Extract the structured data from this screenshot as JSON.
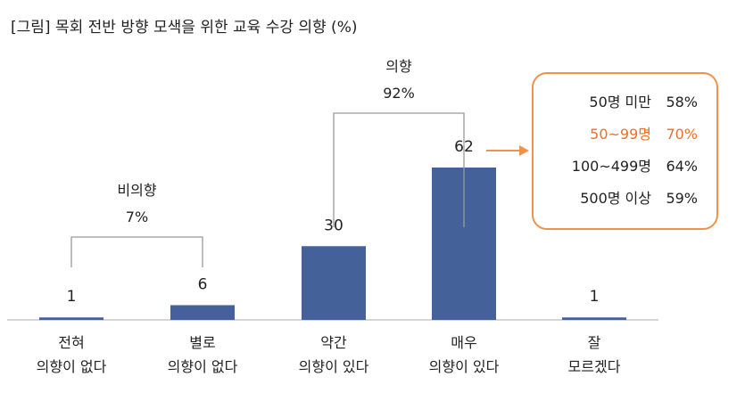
{
  "chart_data": {
    "type": "bar",
    "title": "[그림] 목회 전반 방향 모색을 위한 교육 수강 의향 (%)",
    "unit": "%",
    "categories": [
      [
        "전혀",
        "의향이 없다"
      ],
      [
        "별로",
        "의향이 없다"
      ],
      [
        "약간",
        "의향이 있다"
      ],
      [
        "매우",
        "의향이 있다"
      ],
      [
        "잘",
        "모르겠다"
      ]
    ],
    "values": [
      1,
      6,
      30,
      62,
      1
    ],
    "ylim": [
      0,
      62
    ],
    "bar_color": "#44619a",
    "groups": [
      {
        "label": "비의향",
        "value": "7%",
        "from": 0,
        "to": 1
      },
      {
        "label": "의향",
        "value": "92%",
        "from": 2,
        "to": 3
      }
    ],
    "callout": {
      "target": 3,
      "border_color": "#f0924a",
      "highlight_color": "#e8712c",
      "rows": [
        {
          "label": "50명 미만",
          "value": "58%",
          "highlight": false
        },
        {
          "label": "50~99명",
          "value": "70%",
          "highlight": true
        },
        {
          "label": "100~499명",
          "value": "64%",
          "highlight": false
        },
        {
          "label": "500명 이상",
          "value": "59%",
          "highlight": false
        }
      ]
    }
  }
}
